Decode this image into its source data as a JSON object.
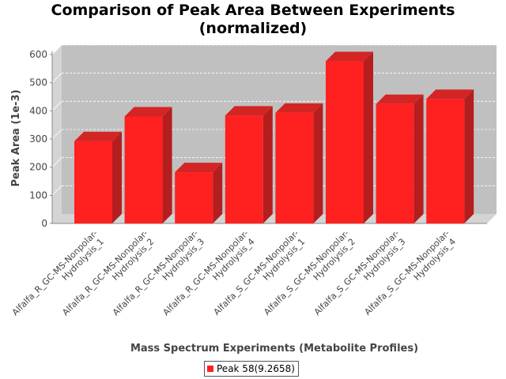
{
  "chart_data": {
    "type": "bar",
    "title_line1": "Comparison of Peak Area Between Experiments",
    "title_line2": "(normalized)",
    "xlabel": "Mass Spectrum Experiments (Metabolite Profiles)",
    "ylabel": "Peak Area (1e-3)",
    "ylim": [
      0,
      600
    ],
    "yticks": [
      0,
      100,
      200,
      300,
      400,
      500,
      600
    ],
    "categories": [
      "Alfalfa_R_GC-MS-Nonpolar-Hydrolysis_1",
      "Alfalfa_R_GC-MS-Nonpolar-Hydrolysis_2",
      "Alfalfa_R_GC-MS-Nonpolar-Hydrolysis_3",
      "Alfalfa_R_GC-MS-Nonpolar-Hydrolysis_4",
      "Alfalfa_S_GC-MS-Nonpolar-Hydrolysis_1",
      "Alfalfa_S_GC-MS-Nonpolar-Hydrolysis_2",
      "Alfalfa_S_GC-MS-Nonpolar-Hydrolysis_3",
      "Alfalfa_S_GC-MS-Nonpolar-Hydrolysis_4"
    ],
    "category_lines": [
      [
        "Alfalfa_R_GC-MS-Nonpolar-",
        "Hydrolysis_1"
      ],
      [
        "Alfalfa_R_GC-MS-Nonpolar-",
        "Hydrolysis_2"
      ],
      [
        "Alfalfa_R_GC-MS-Nonpolar-",
        "Hydrolysis_3"
      ],
      [
        "Alfalfa_R_GC-MS-Nonpolar-",
        "Hydrolysis_4"
      ],
      [
        "Alfalfa_S_GC-MS-Nonpolar-",
        "Hydrolysis_1"
      ],
      [
        "Alfalfa_S_GC-MS-Nonpolar-",
        "Hydrolysis_2"
      ],
      [
        "Alfalfa_S_GC-MS-Nonpolar-",
        "Hydrolysis_3"
      ],
      [
        "Alfalfa_S_GC-MS-Nonpolar-",
        "Hydrolysis_4"
      ]
    ],
    "series": [
      {
        "name": "Peak 58(9.2658)",
        "color": "#ff2020",
        "values": [
          292,
          380,
          182,
          383,
          393,
          576,
          424,
          442
        ]
      }
    ],
    "grid": true,
    "legend_position": "bottom-center",
    "style": "3d-bar",
    "colors": {
      "plot_background": "#c0c0c0",
      "plot_wall": "#d4d4d4",
      "bar_front": "#ff2020",
      "bar_top": "#d42525",
      "bar_side": "#b51e1e",
      "gridline": "#ffffff"
    }
  }
}
